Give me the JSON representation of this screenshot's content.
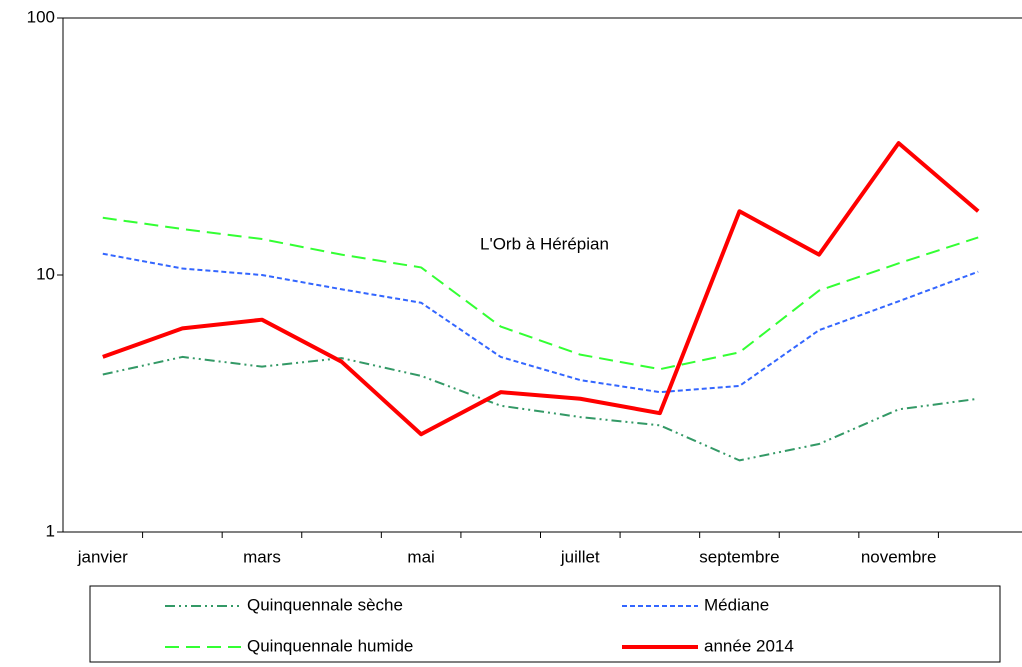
{
  "chart_data": {
    "type": "line",
    "annotation": "L'Orb à Hérépian",
    "categories": [
      "janvier",
      null,
      "mars",
      null,
      "mai",
      null,
      "juillet",
      null,
      "septembre",
      null,
      "novembre",
      null
    ],
    "series": [
      {
        "name": "Quinquennale sèche",
        "color": "#339966",
        "dash": "10 4 2 4 2 4",
        "width": 2,
        "values": [
          4.1,
          4.8,
          4.4,
          4.75,
          4.05,
          3.1,
          2.8,
          2.6,
          1.9,
          2.2,
          3.0,
          3.3
        ]
      },
      {
        "name": "Médiane",
        "color": "#3366ff",
        "dash": "5 3",
        "width": 2,
        "values": [
          12.1,
          10.6,
          10,
          8.8,
          7.8,
          4.8,
          3.9,
          3.5,
          3.7,
          6.1,
          7.9,
          10.3
        ]
      },
      {
        "name": "Quinquennale humide",
        "color": "#33ff33",
        "dash": "14 7",
        "width": 2,
        "values": [
          16.7,
          15.1,
          13.8,
          12,
          10.7,
          6.3,
          4.9,
          4.3,
          5.0,
          8.7,
          11.1,
          14
        ]
      },
      {
        "name": "année 2014",
        "color": "#ff0000",
        "dash": "none",
        "width": 4,
        "values": [
          4.8,
          6.2,
          6.7,
          4.6,
          2.4,
          3.5,
          3.3,
          2.9,
          17.7,
          12,
          32.6,
          17.7
        ]
      }
    ],
    "log_y": true,
    "ylim": [
      1,
      100
    ],
    "yticks": [
      1,
      10,
      100
    ]
  }
}
